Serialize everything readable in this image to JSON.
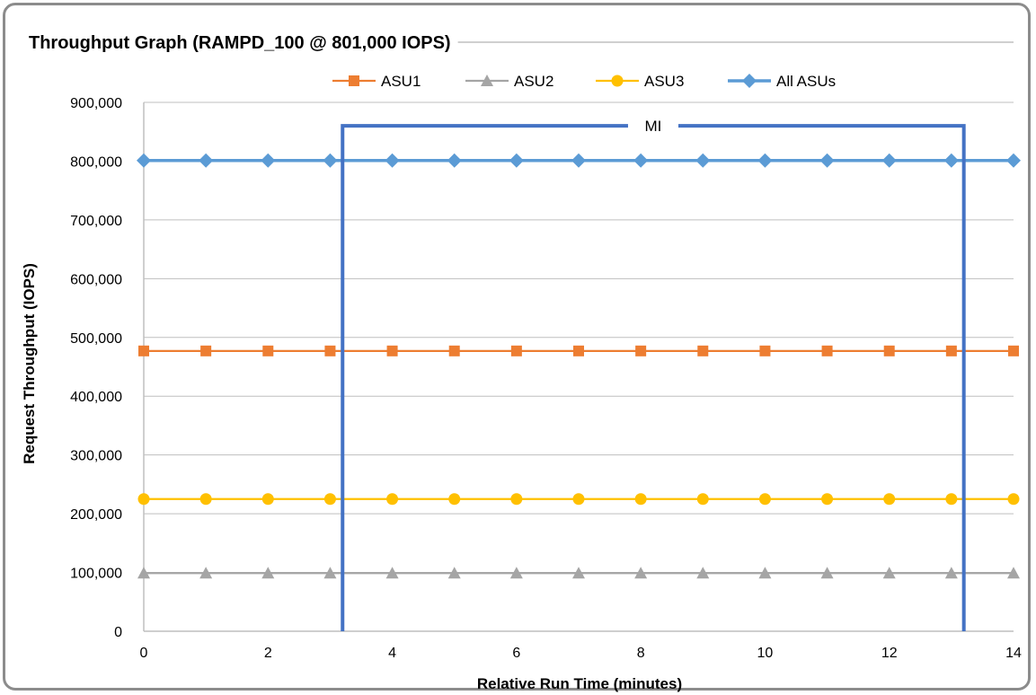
{
  "chart_data": {
    "type": "line",
    "title": "Throughput Graph (RAMPD_100  @ 801,000 IOPS)",
    "xlabel": "Relative Run Time (minutes)",
    "ylabel": "Request Throughput (IOPS)",
    "xlim": [
      0,
      14
    ],
    "ylim": [
      0,
      900000
    ],
    "xticks": [
      0,
      2,
      4,
      6,
      8,
      10,
      12,
      14
    ],
    "xtick_labels": [
      "0",
      "2",
      "4",
      "6",
      "8",
      "10",
      "12",
      "14"
    ],
    "yticks": [
      0,
      100000,
      200000,
      300000,
      400000,
      500000,
      600000,
      700000,
      800000,
      900000
    ],
    "ytick_labels": [
      "0",
      "100,000",
      "200,000",
      "300,000",
      "400,000",
      "500,000",
      "600,000",
      "700,000",
      "800,000",
      "900,000"
    ],
    "grid": true,
    "legend_position": "top",
    "x": [
      0,
      1,
      2,
      3,
      4,
      5,
      6,
      7,
      8,
      9,
      10,
      11,
      12,
      13,
      14
    ],
    "series": [
      {
        "name": "ASU1",
        "color": "#ed7d31",
        "marker": "square",
        "values": [
          477000,
          477000,
          477000,
          477000,
          477000,
          477000,
          477000,
          477000,
          477000,
          477000,
          477000,
          477000,
          477000,
          477000,
          477000
        ]
      },
      {
        "name": "ASU2",
        "color": "#a5a5a5",
        "marker": "triangle",
        "values": [
          99000,
          99000,
          99000,
          99000,
          99000,
          99000,
          99000,
          99000,
          99000,
          99000,
          99000,
          99000,
          99000,
          99000,
          99000
        ]
      },
      {
        "name": "ASU3",
        "color": "#ffc000",
        "marker": "circle",
        "values": [
          225000,
          225000,
          225000,
          225000,
          225000,
          225000,
          225000,
          225000,
          225000,
          225000,
          225000,
          225000,
          225000,
          225000,
          225000
        ]
      },
      {
        "name": "All ASUs",
        "color": "#5b9bd5",
        "marker": "diamond",
        "values": [
          801000,
          801000,
          801000,
          801000,
          801000,
          801000,
          801000,
          801000,
          801000,
          801000,
          801000,
          801000,
          801000,
          801000,
          801000
        ]
      }
    ],
    "annotation": {
      "label": "MI",
      "x_start": 3.2,
      "x_end": 13.2,
      "y_top": 860000,
      "color": "#4472c4"
    }
  }
}
